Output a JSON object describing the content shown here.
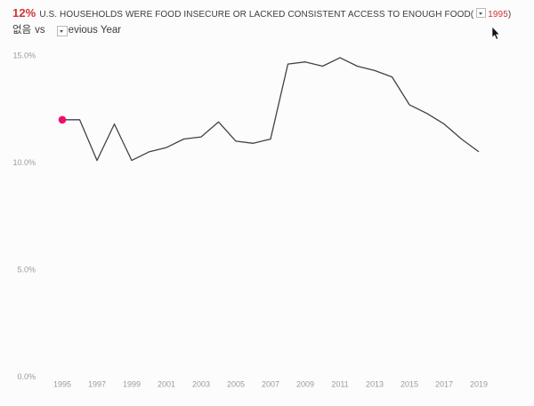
{
  "header": {
    "headline_value": "12%",
    "headline_text": "U.S. HOUSEHOLDS WERE FOOD INSECURE OR LACKED CONSISTENT ACCESS TO ENOUGH FOOD(",
    "year_value": "1995",
    "close_paren": ")",
    "filter_value": "없음",
    "vs_label": "vs",
    "comparison_value": "evious Year"
  },
  "colors": {
    "background": "#fcfcfc",
    "headline_red": "#d03434",
    "line": "#41414b",
    "marker_dot": "#ee1168",
    "axis_label": "#9b9b9b",
    "title_text": "#3c3c3c"
  },
  "chart_data": {
    "type": "line",
    "title": "12% U.S. HOUSEHOLDS WERE FOOD INSECURE OR LACKED CONSISTENT ACCESS TO ENOUGH FOOD (1995)",
    "x": [
      1995,
      1996,
      1997,
      1998,
      1999,
      2000,
      2001,
      2002,
      2003,
      2004,
      2005,
      2006,
      2007,
      2008,
      2009,
      2010,
      2011,
      2012,
      2013,
      2014,
      2015,
      2016,
      2017,
      2018,
      2019
    ],
    "values": [
      12.0,
      12.0,
      10.1,
      11.8,
      10.1,
      10.5,
      10.7,
      11.1,
      11.2,
      11.9,
      11.0,
      10.9,
      11.1,
      14.6,
      14.7,
      14.5,
      14.9,
      14.5,
      14.3,
      14.0,
      12.7,
      12.3,
      11.8,
      11.1,
      10.5
    ],
    "xlabel": "",
    "ylabel": "",
    "ylim": [
      0,
      15
    ],
    "x_range": [
      1995,
      2019
    ],
    "grid": false,
    "legend": false,
    "y_ticks": [
      {
        "label": "15.0%",
        "value": 15
      },
      {
        "label": "10.0%",
        "value": 10
      },
      {
        "label": "5.0%",
        "value": 5
      },
      {
        "label": "0.0%",
        "value": 0
      }
    ],
    "x_ticks": [
      1995,
      1997,
      1999,
      2001,
      2003,
      2005,
      2007,
      2009,
      2011,
      2013,
      2015,
      2017,
      2019
    ],
    "marker": {
      "year": 1995,
      "value": 12.0
    }
  }
}
